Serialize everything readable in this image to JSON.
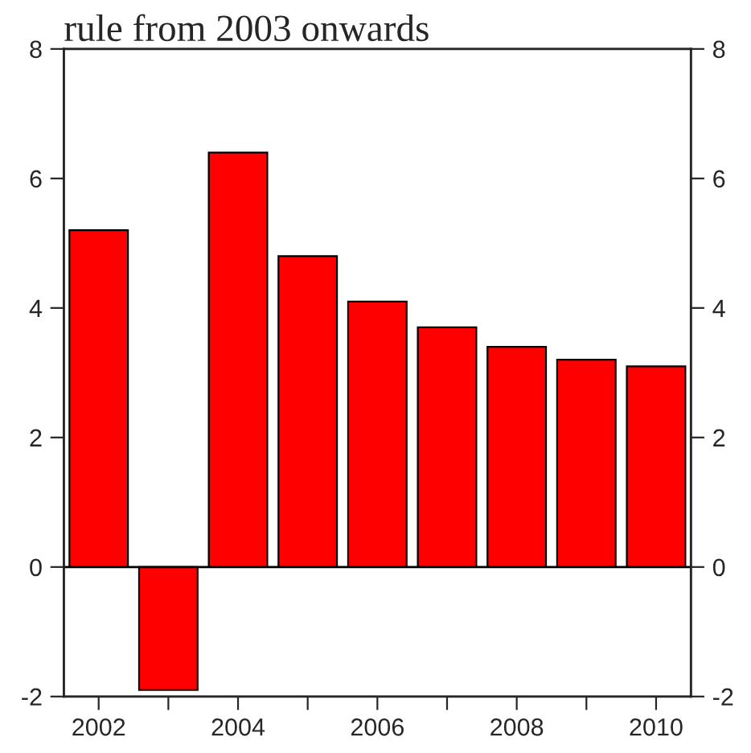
{
  "chart_data": {
    "type": "bar",
    "title": "rule from 2003 onwards",
    "categories": [
      "2002",
      null,
      "2004",
      null,
      "2006",
      null,
      "2008",
      null,
      "2010"
    ],
    "values": [
      5.2,
      -1.9,
      6.4,
      4.8,
      4.1,
      3.7,
      3.4,
      3.2,
      3.1
    ],
    "color": "#ff0000",
    "ylim": [
      -2,
      8
    ],
    "yticks": [
      -2,
      0,
      2,
      4,
      6,
      8
    ],
    "y2lim": [
      -2,
      8
    ],
    "y2ticks": [
      -2,
      0,
      2,
      4,
      6,
      8
    ],
    "ref_lines": [
      {
        "axis": "y",
        "value": 0,
        "color": "#000000"
      }
    ],
    "grid": false,
    "legend": false
  }
}
